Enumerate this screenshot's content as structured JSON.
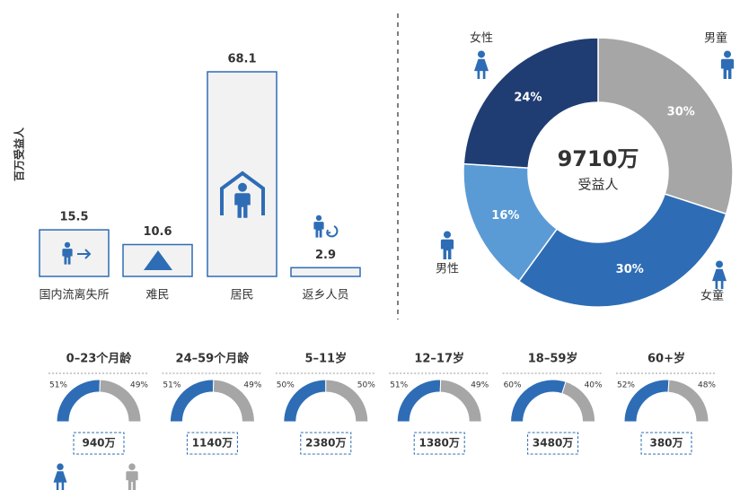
{
  "chart_data": [
    {
      "type": "bar",
      "ylabel": "百万受益人",
      "categories": [
        "国内流离失所",
        "难民",
        "居民",
        "返乡人员"
      ],
      "values": [
        15.5,
        10.6,
        68.1,
        2.9
      ],
      "color": "#f2f2f2",
      "edge_color": "#2e6db5"
    },
    {
      "type": "donut",
      "center_value": "9710万",
      "center_label": "受益人",
      "categories": [
        "男童",
        "女童",
        "男性",
        "女性"
      ],
      "values": [
        30,
        30,
        16,
        24
      ],
      "value_labels": [
        "30%",
        "30%",
        "16%",
        "24%"
      ],
      "colors": [
        "#a6a6a6",
        "#2e6db5",
        "#5b9bd5",
        "#1f3d73"
      ]
    },
    {
      "type": "semi-donut",
      "title": "0–23个月龄",
      "values": [
        51,
        49
      ],
      "value_labels": [
        "51%",
        "49%"
      ],
      "total": "940万",
      "colors": [
        "#2e6db5",
        "#a6a6a6"
      ]
    },
    {
      "type": "semi-donut",
      "title": "24–59个月龄",
      "values": [
        51,
        49
      ],
      "value_labels": [
        "51%",
        "49%"
      ],
      "total": "1140万",
      "colors": [
        "#2e6db5",
        "#a6a6a6"
      ]
    },
    {
      "type": "semi-donut",
      "title": "5–11岁",
      "values": [
        50,
        50
      ],
      "value_labels": [
        "50%",
        "50%"
      ],
      "total": "2380万",
      "colors": [
        "#2e6db5",
        "#a6a6a6"
      ]
    },
    {
      "type": "semi-donut",
      "title": "12–17岁",
      "values": [
        51,
        49
      ],
      "value_labels": [
        "51%",
        "49%"
      ],
      "total": "1380万",
      "colors": [
        "#2e6db5",
        "#a6a6a6"
      ]
    },
    {
      "type": "semi-donut",
      "title": "18–59岁",
      "values": [
        60,
        40
      ],
      "value_labels": [
        "60%",
        "40%"
      ],
      "total": "3480万",
      "colors": [
        "#2e6db5",
        "#a6a6a6"
      ]
    },
    {
      "type": "semi-donut",
      "title": "60+岁",
      "values": [
        52,
        48
      ],
      "value_labels": [
        "52%",
        "48%"
      ],
      "total": "380万",
      "colors": [
        "#2e6db5",
        "#a6a6a6"
      ]
    }
  ]
}
